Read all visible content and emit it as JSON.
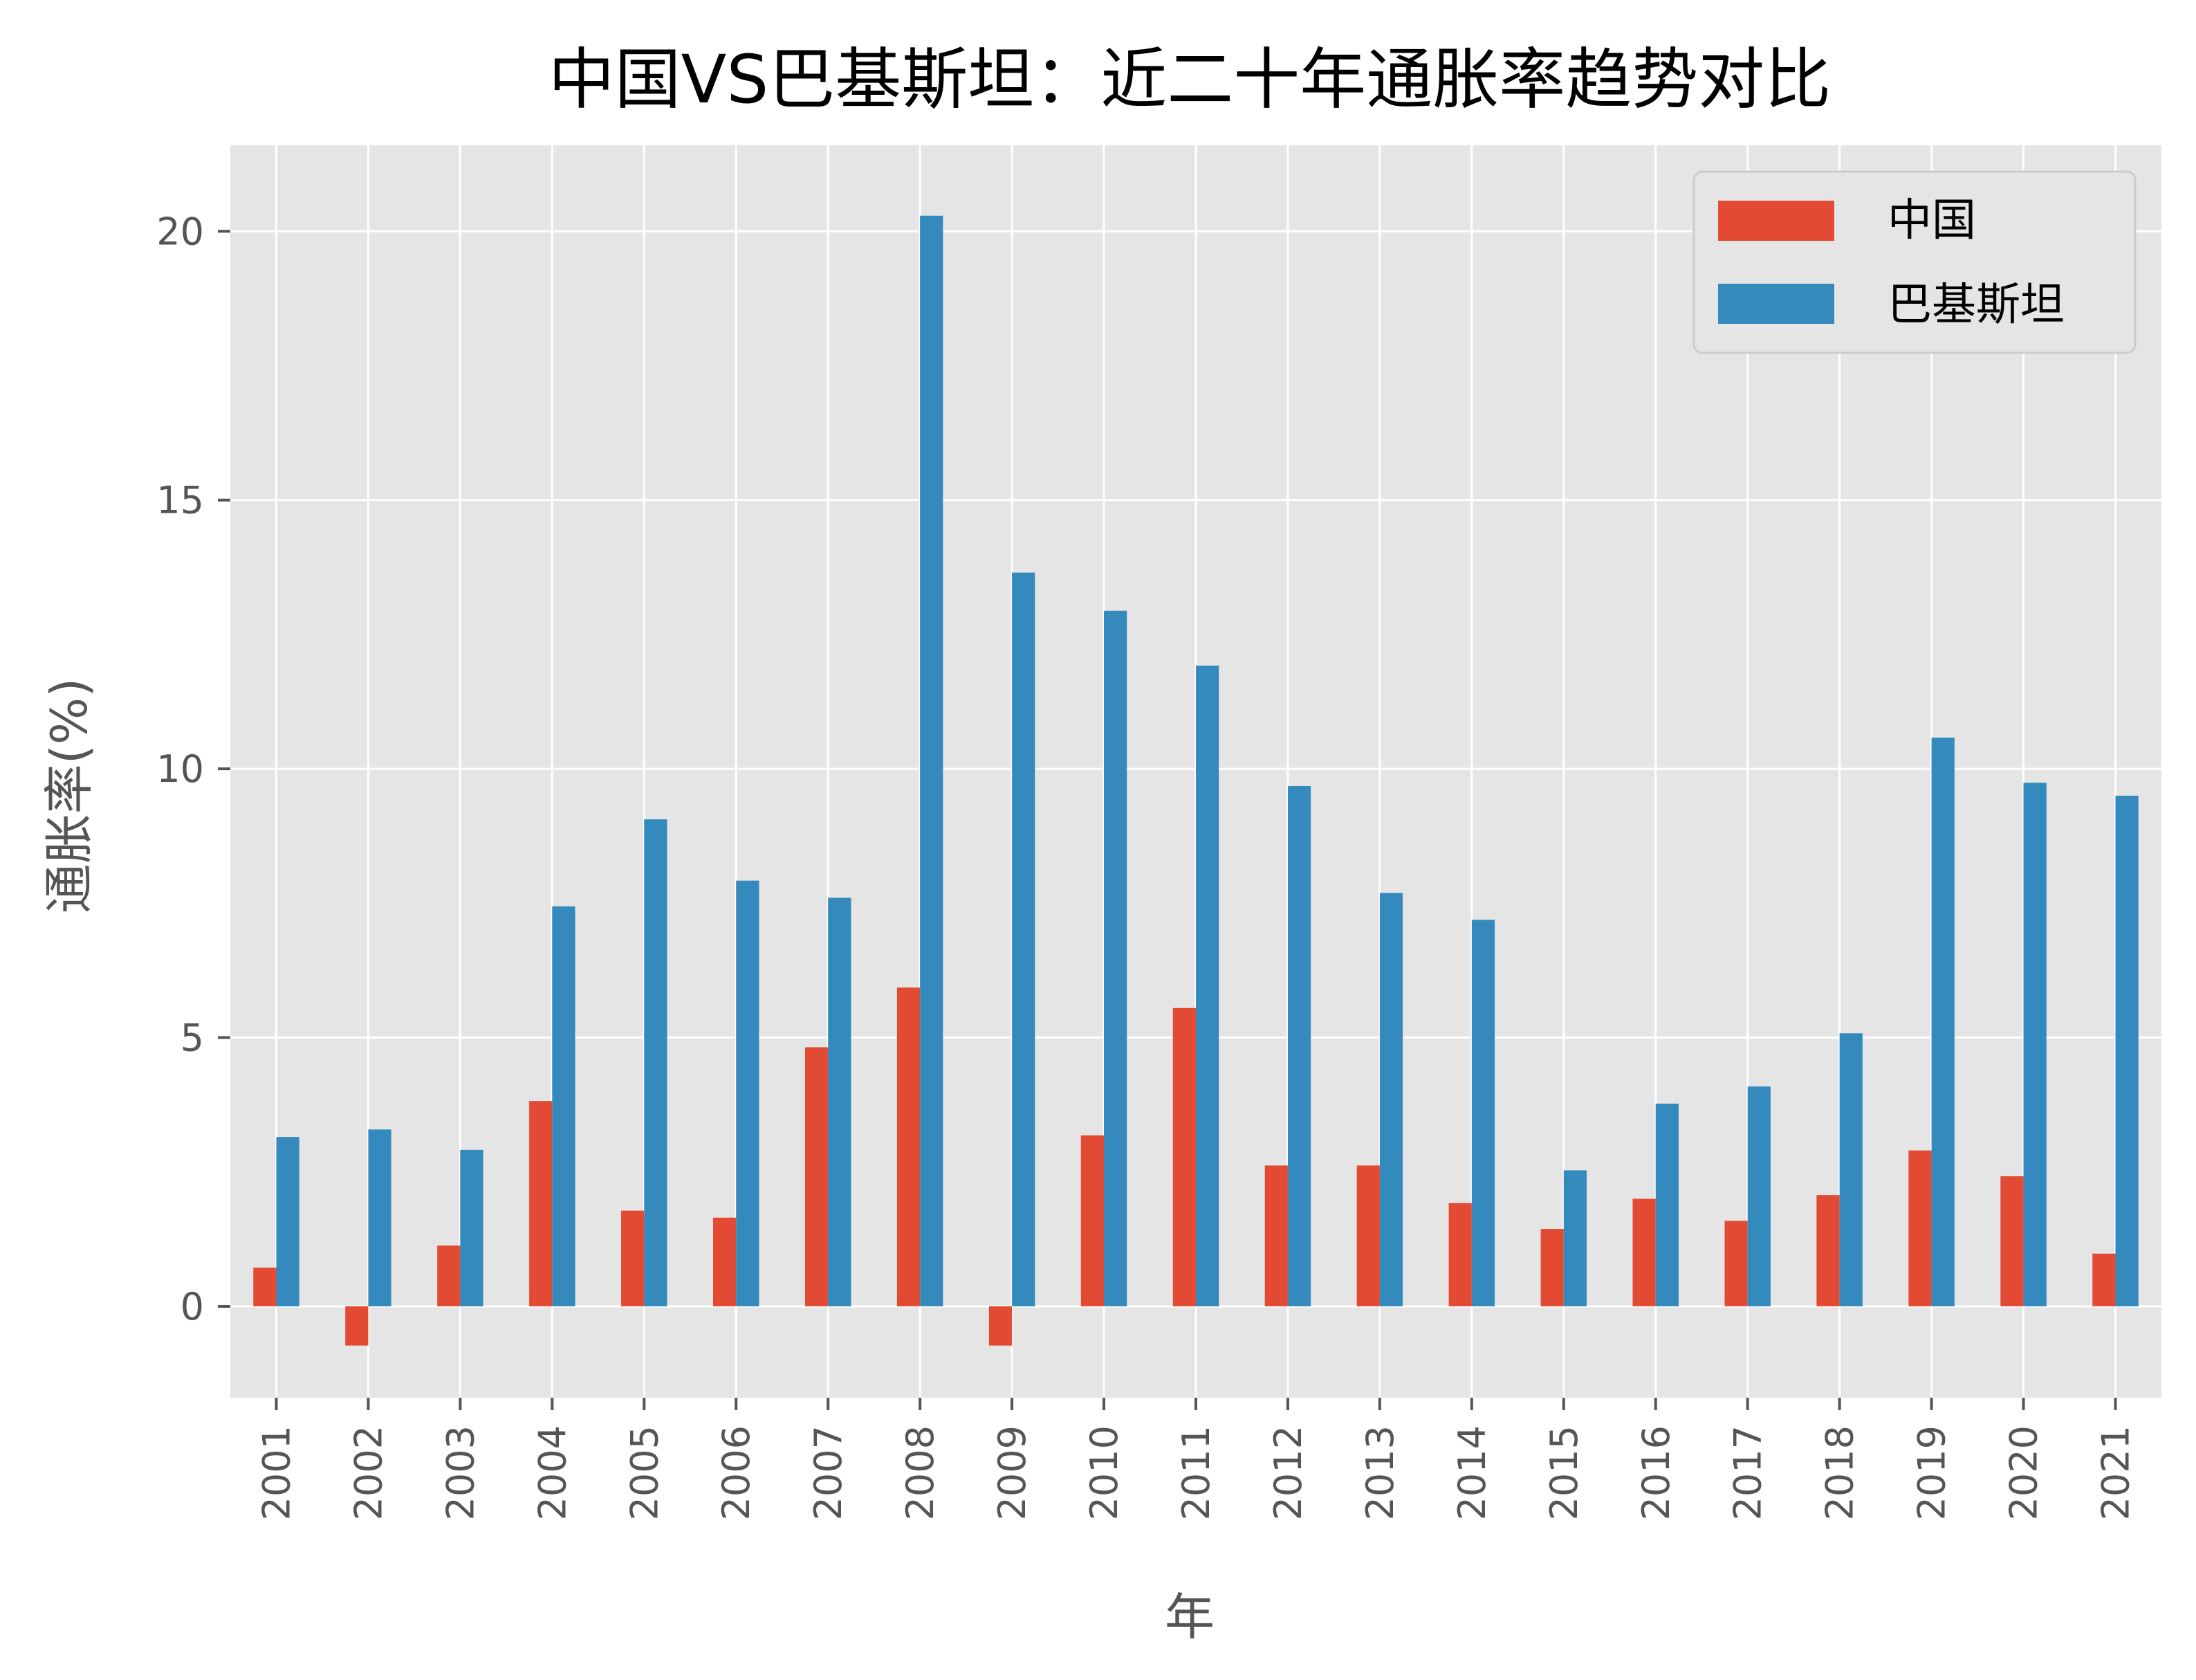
{
  "chart_data": {
    "type": "bar",
    "title": "中国VS巴基斯坦：近二十年通胀率趋势对比",
    "xlabel": "年",
    "ylabel": "通胀率(%)",
    "categories": [
      "2001",
      "2002",
      "2003",
      "2004",
      "2005",
      "2006",
      "2007",
      "2008",
      "2009",
      "2010",
      "2011",
      "2012",
      "2013",
      "2014",
      "2015",
      "2016",
      "2017",
      "2018",
      "2019",
      "2020",
      "2021"
    ],
    "series": [
      {
        "name": "中国",
        "color": "#E24A33",
        "values": [
          0.72,
          -0.73,
          1.13,
          3.82,
          1.78,
          1.65,
          4.82,
          5.93,
          -0.73,
          3.18,
          5.55,
          2.62,
          2.62,
          1.92,
          1.44,
          2.0,
          1.59,
          2.07,
          2.9,
          2.42,
          0.98
        ]
      },
      {
        "name": "巴基斯坦",
        "color": "#348ABD",
        "values": [
          3.15,
          3.29,
          2.91,
          7.44,
          9.06,
          7.92,
          7.6,
          20.29,
          13.65,
          12.94,
          11.92,
          9.68,
          7.69,
          7.19,
          2.53,
          3.77,
          4.09,
          5.08,
          10.58,
          9.74,
          9.5
        ]
      }
    ],
    "yticks": [
      0,
      5,
      10,
      15,
      20
    ],
    "ytick_labels": [
      "0",
      "5",
      "10",
      "15",
      "20"
    ],
    "ylim": [
      -1.7,
      21.6
    ],
    "grid": true,
    "legend": "top-right",
    "plot_background": "#E5E5E5",
    "grid_color": "#FFFFFF"
  }
}
